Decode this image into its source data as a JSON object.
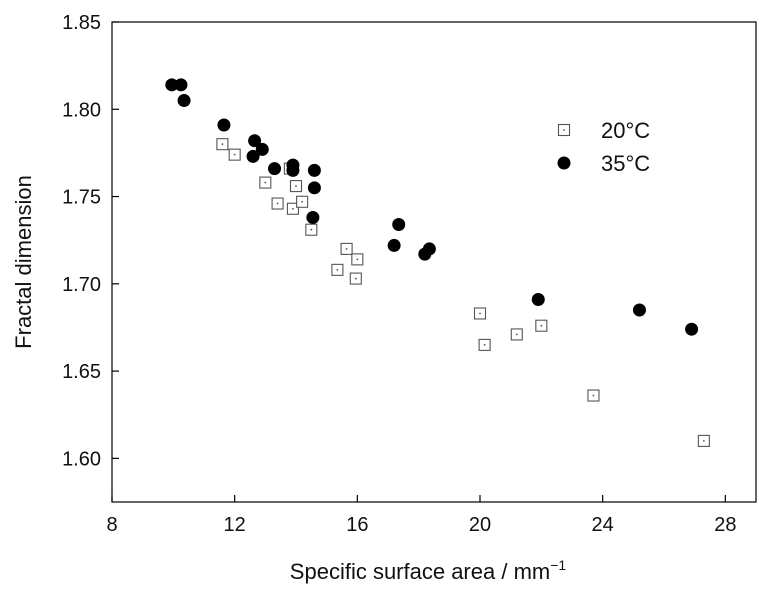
{
  "chart_data": {
    "type": "scatter",
    "title": "",
    "xlabel": "Specific surface area / mm",
    "xlabel_sup": "−1",
    "ylabel": "Fractal dimension",
    "xlim": [
      8,
      29
    ],
    "ylim": [
      1.575,
      1.85
    ],
    "xticks": [
      8,
      12,
      16,
      20,
      24,
      28
    ],
    "xtick_labels": [
      "8",
      "12",
      "16",
      "20",
      "24",
      "28"
    ],
    "yticks": [
      1.6,
      1.65,
      1.7,
      1.75,
      1.8,
      1.85
    ],
    "ytick_labels": [
      "1.60",
      "1.65",
      "1.70",
      "1.75",
      "1.80",
      "1.85"
    ],
    "grid": false,
    "legend_position": "right",
    "series": [
      {
        "name": "20°C",
        "marker": "open-square",
        "color": "#555555",
        "points": [
          [
            11.6,
            1.78
          ],
          [
            12.0,
            1.774
          ],
          [
            13.0,
            1.758
          ],
          [
            13.4,
            1.746
          ],
          [
            13.9,
            1.743
          ],
          [
            14.0,
            1.756
          ],
          [
            14.2,
            1.747
          ],
          [
            14.5,
            1.731
          ],
          [
            13.8,
            1.766
          ],
          [
            15.35,
            1.708
          ],
          [
            15.65,
            1.72
          ],
          [
            16.0,
            1.714
          ],
          [
            15.95,
            1.703
          ],
          [
            20.0,
            1.683
          ],
          [
            20.15,
            1.665
          ],
          [
            21.2,
            1.671
          ],
          [
            22.0,
            1.676
          ],
          [
            23.7,
            1.636
          ],
          [
            27.3,
            1.61
          ]
        ]
      },
      {
        "name": "35°C",
        "marker": "filled-circle",
        "color": "#000000",
        "points": [
          [
            9.95,
            1.814
          ],
          [
            10.25,
            1.814
          ],
          [
            10.35,
            1.805
          ],
          [
            11.65,
            1.791
          ],
          [
            12.6,
            1.773
          ],
          [
            12.65,
            1.782
          ],
          [
            12.9,
            1.777
          ],
          [
            13.3,
            1.766
          ],
          [
            13.9,
            1.765
          ],
          [
            13.9,
            1.768
          ],
          [
            14.6,
            1.755
          ],
          [
            14.6,
            1.765
          ],
          [
            14.55,
            1.738
          ],
          [
            17.2,
            1.722
          ],
          [
            17.35,
            1.734
          ],
          [
            18.2,
            1.717
          ],
          [
            18.35,
            1.72
          ],
          [
            21.9,
            1.691
          ],
          [
            25.2,
            1.685
          ],
          [
            26.9,
            1.674
          ]
        ]
      }
    ]
  }
}
